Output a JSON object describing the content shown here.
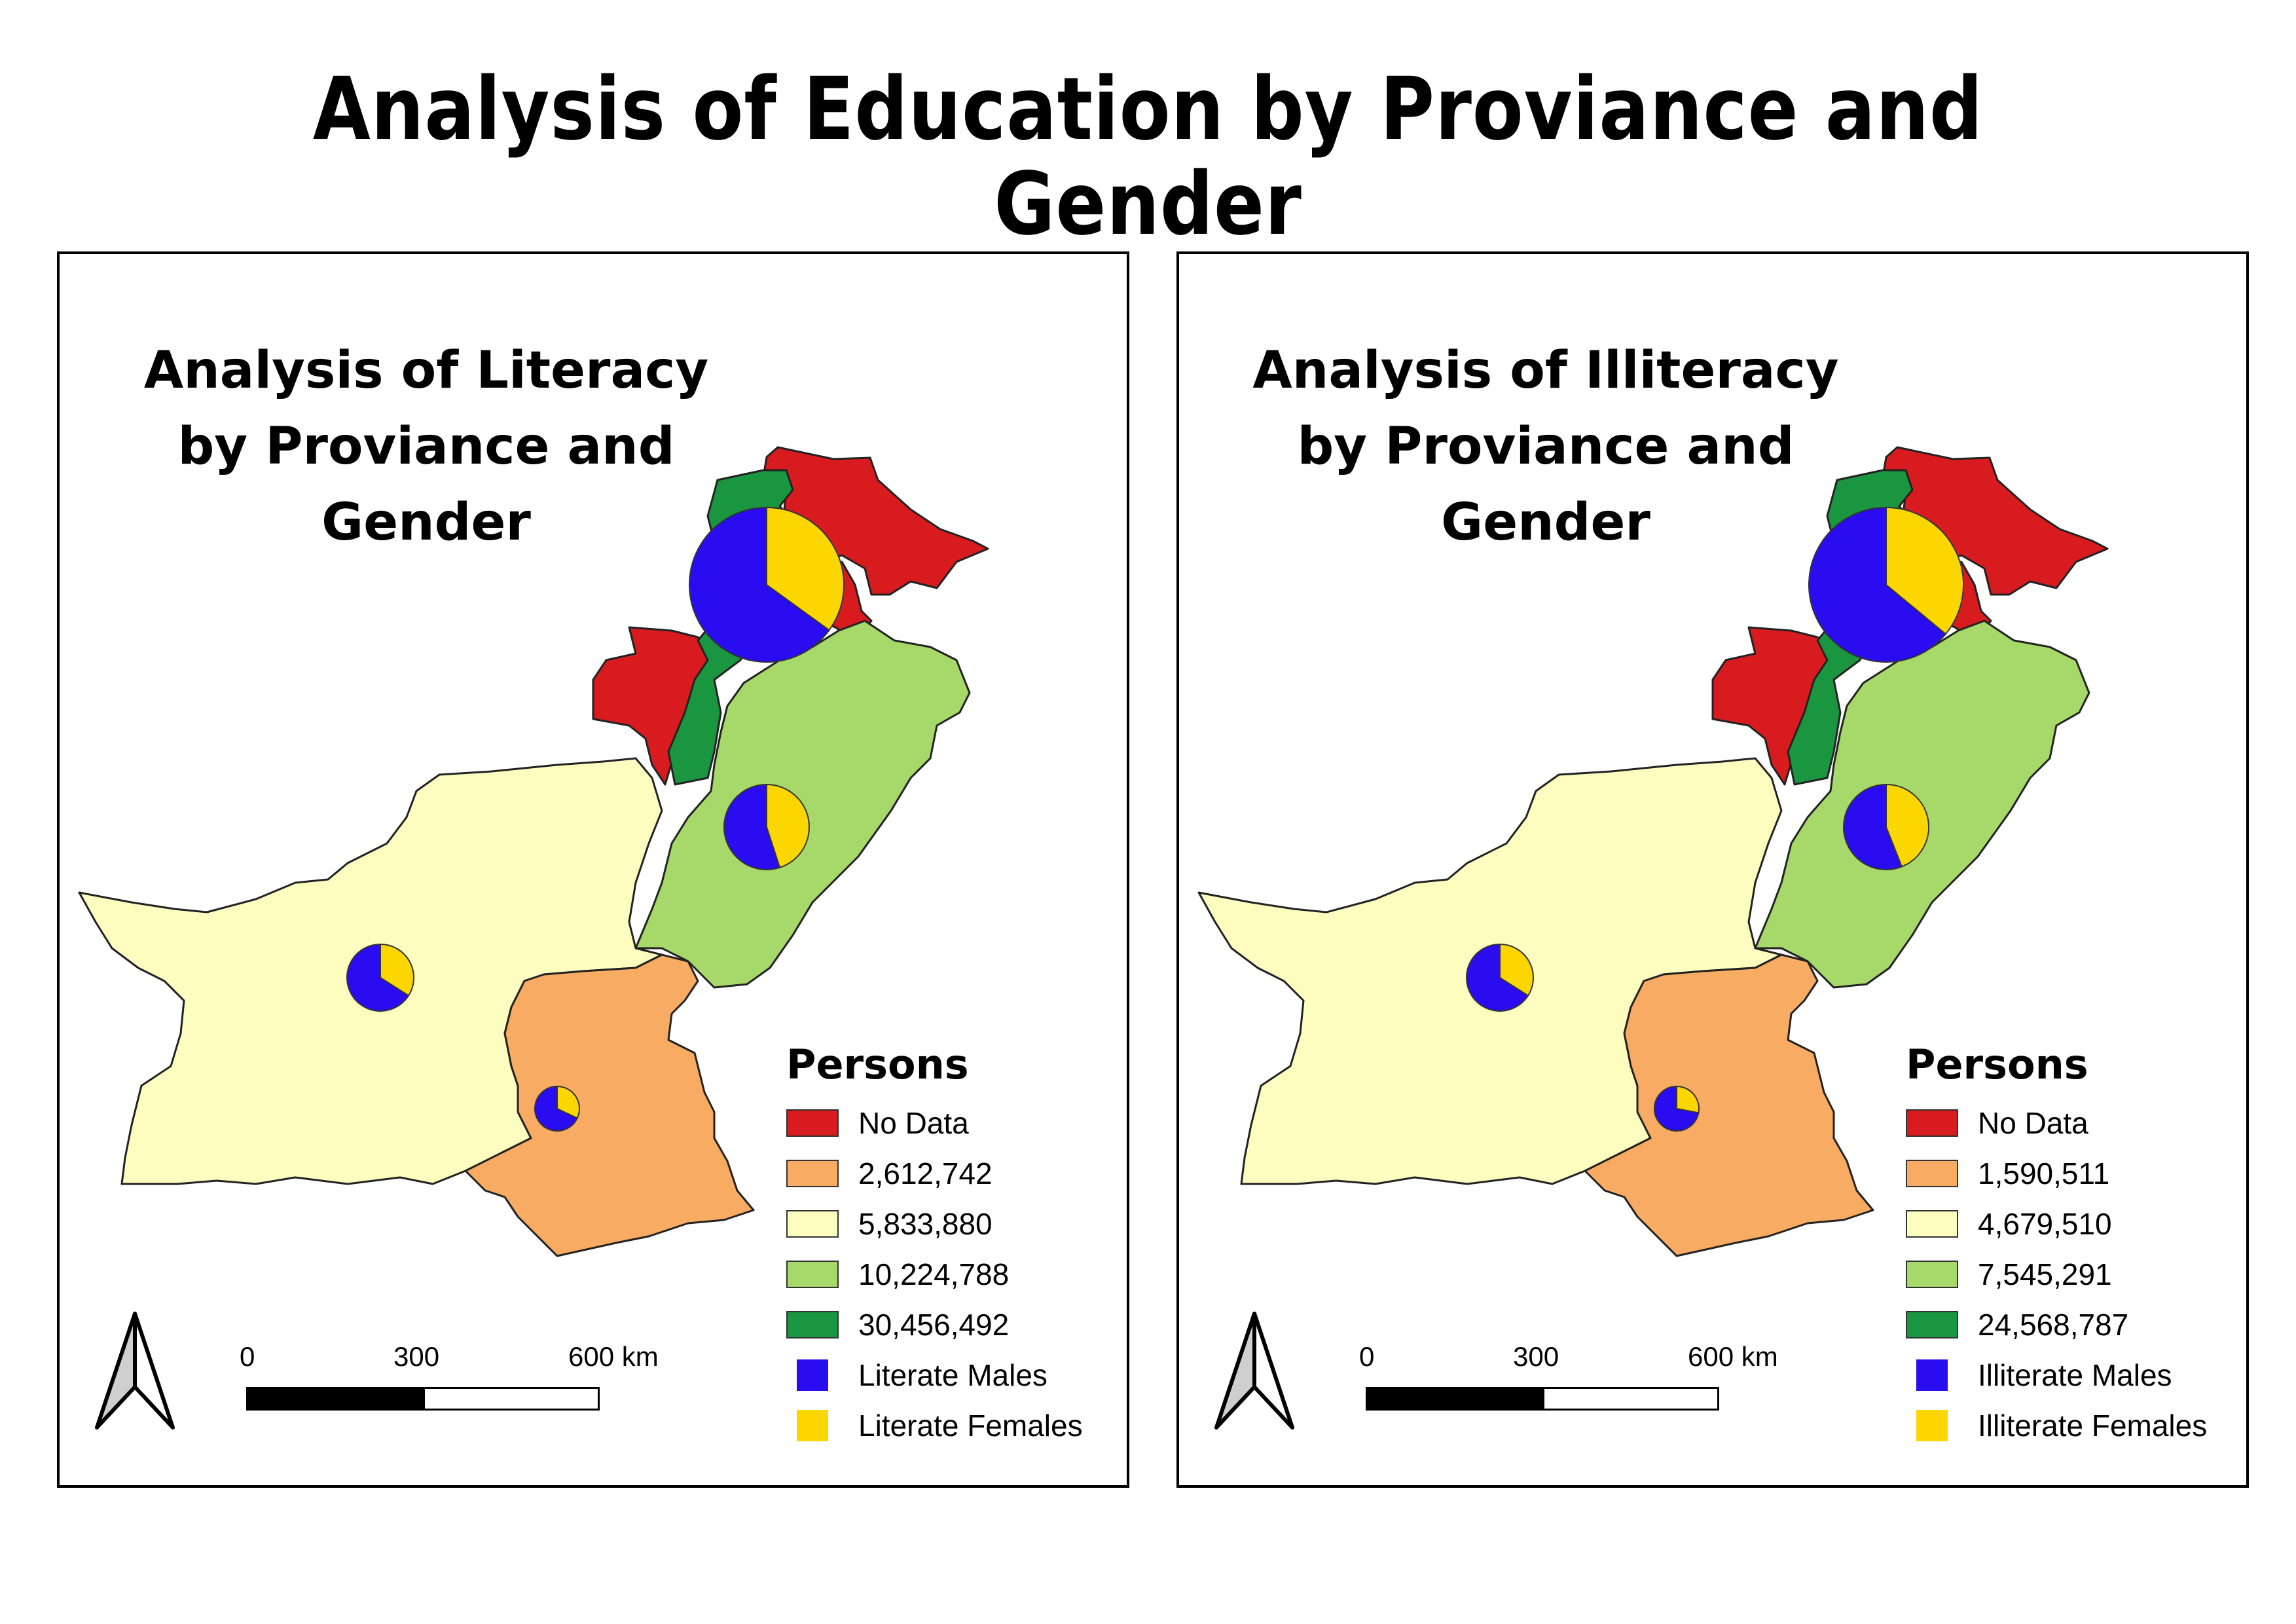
{
  "title": "Analysis of Education by Proviance and Gender",
  "colors": {
    "no_data": "#d71b1f",
    "class1": "#f8ab62",
    "class2": "#fdfdc0",
    "class3": "#a6d96a",
    "class4": "#1a9641",
    "males": "#2a0cf0",
    "females": "#fcd600"
  },
  "panels": [
    {
      "id": "literacy",
      "title_line1": "Analysis of Literacy",
      "title_line2": "by Proviance and",
      "title_line3": "Gender",
      "legend": {
        "heading": "Persons",
        "items": [
          {
            "label": "No Data",
            "color": "#d71b1f"
          },
          {
            "label": "2,612,742",
            "color": "#f8ab62"
          },
          {
            "label": "5,833,880",
            "color": "#fdfdc0"
          },
          {
            "label": "10,224,788",
            "color": "#a6d96a"
          },
          {
            "label": "30,456,492",
            "color": "#1a9641"
          },
          {
            "label": "Literate Males",
            "color": "#2a0cf0"
          },
          {
            "label": "Literate Females",
            "color": "#fcd600"
          }
        ]
      },
      "scale": {
        "label0": "0",
        "label1": "300",
        "label2": "600 km"
      },
      "pies": [
        {
          "province": "Khyber Pakhtunkhwa",
          "male_share": 0.65
        },
        {
          "province": "Punjab",
          "male_share": 0.55
        },
        {
          "province": "Balochistan",
          "male_share": 0.66
        },
        {
          "province": "Sindh",
          "male_share": 0.68
        }
      ]
    },
    {
      "id": "illiteracy",
      "title_line1": "Analysis of Illiteracy",
      "title_line2": "by Proviance and",
      "title_line3": "Gender",
      "legend": {
        "heading": "Persons",
        "items": [
          {
            "label": "No Data",
            "color": "#d71b1f"
          },
          {
            "label": "1,590,511",
            "color": "#f8ab62"
          },
          {
            "label": "4,679,510",
            "color": "#fdfdc0"
          },
          {
            "label": "7,545,291",
            "color": "#a6d96a"
          },
          {
            "label": "24,568,787",
            "color": "#1a9641"
          },
          {
            "label": "Illiterate Males",
            "color": "#2a0cf0"
          },
          {
            "label": "Illiterate Females",
            "color": "#fcd600"
          }
        ]
      },
      "scale": {
        "label0": "0",
        "label1": "300",
        "label2": "600 km"
      },
      "pies": [
        {
          "province": "Khyber Pakhtunkhwa",
          "male_share": 0.64
        },
        {
          "province": "Punjab",
          "male_share": 0.56
        },
        {
          "province": "Balochistan",
          "male_share": 0.66
        },
        {
          "province": "Sindh",
          "male_share": 0.72
        }
      ]
    }
  ]
}
